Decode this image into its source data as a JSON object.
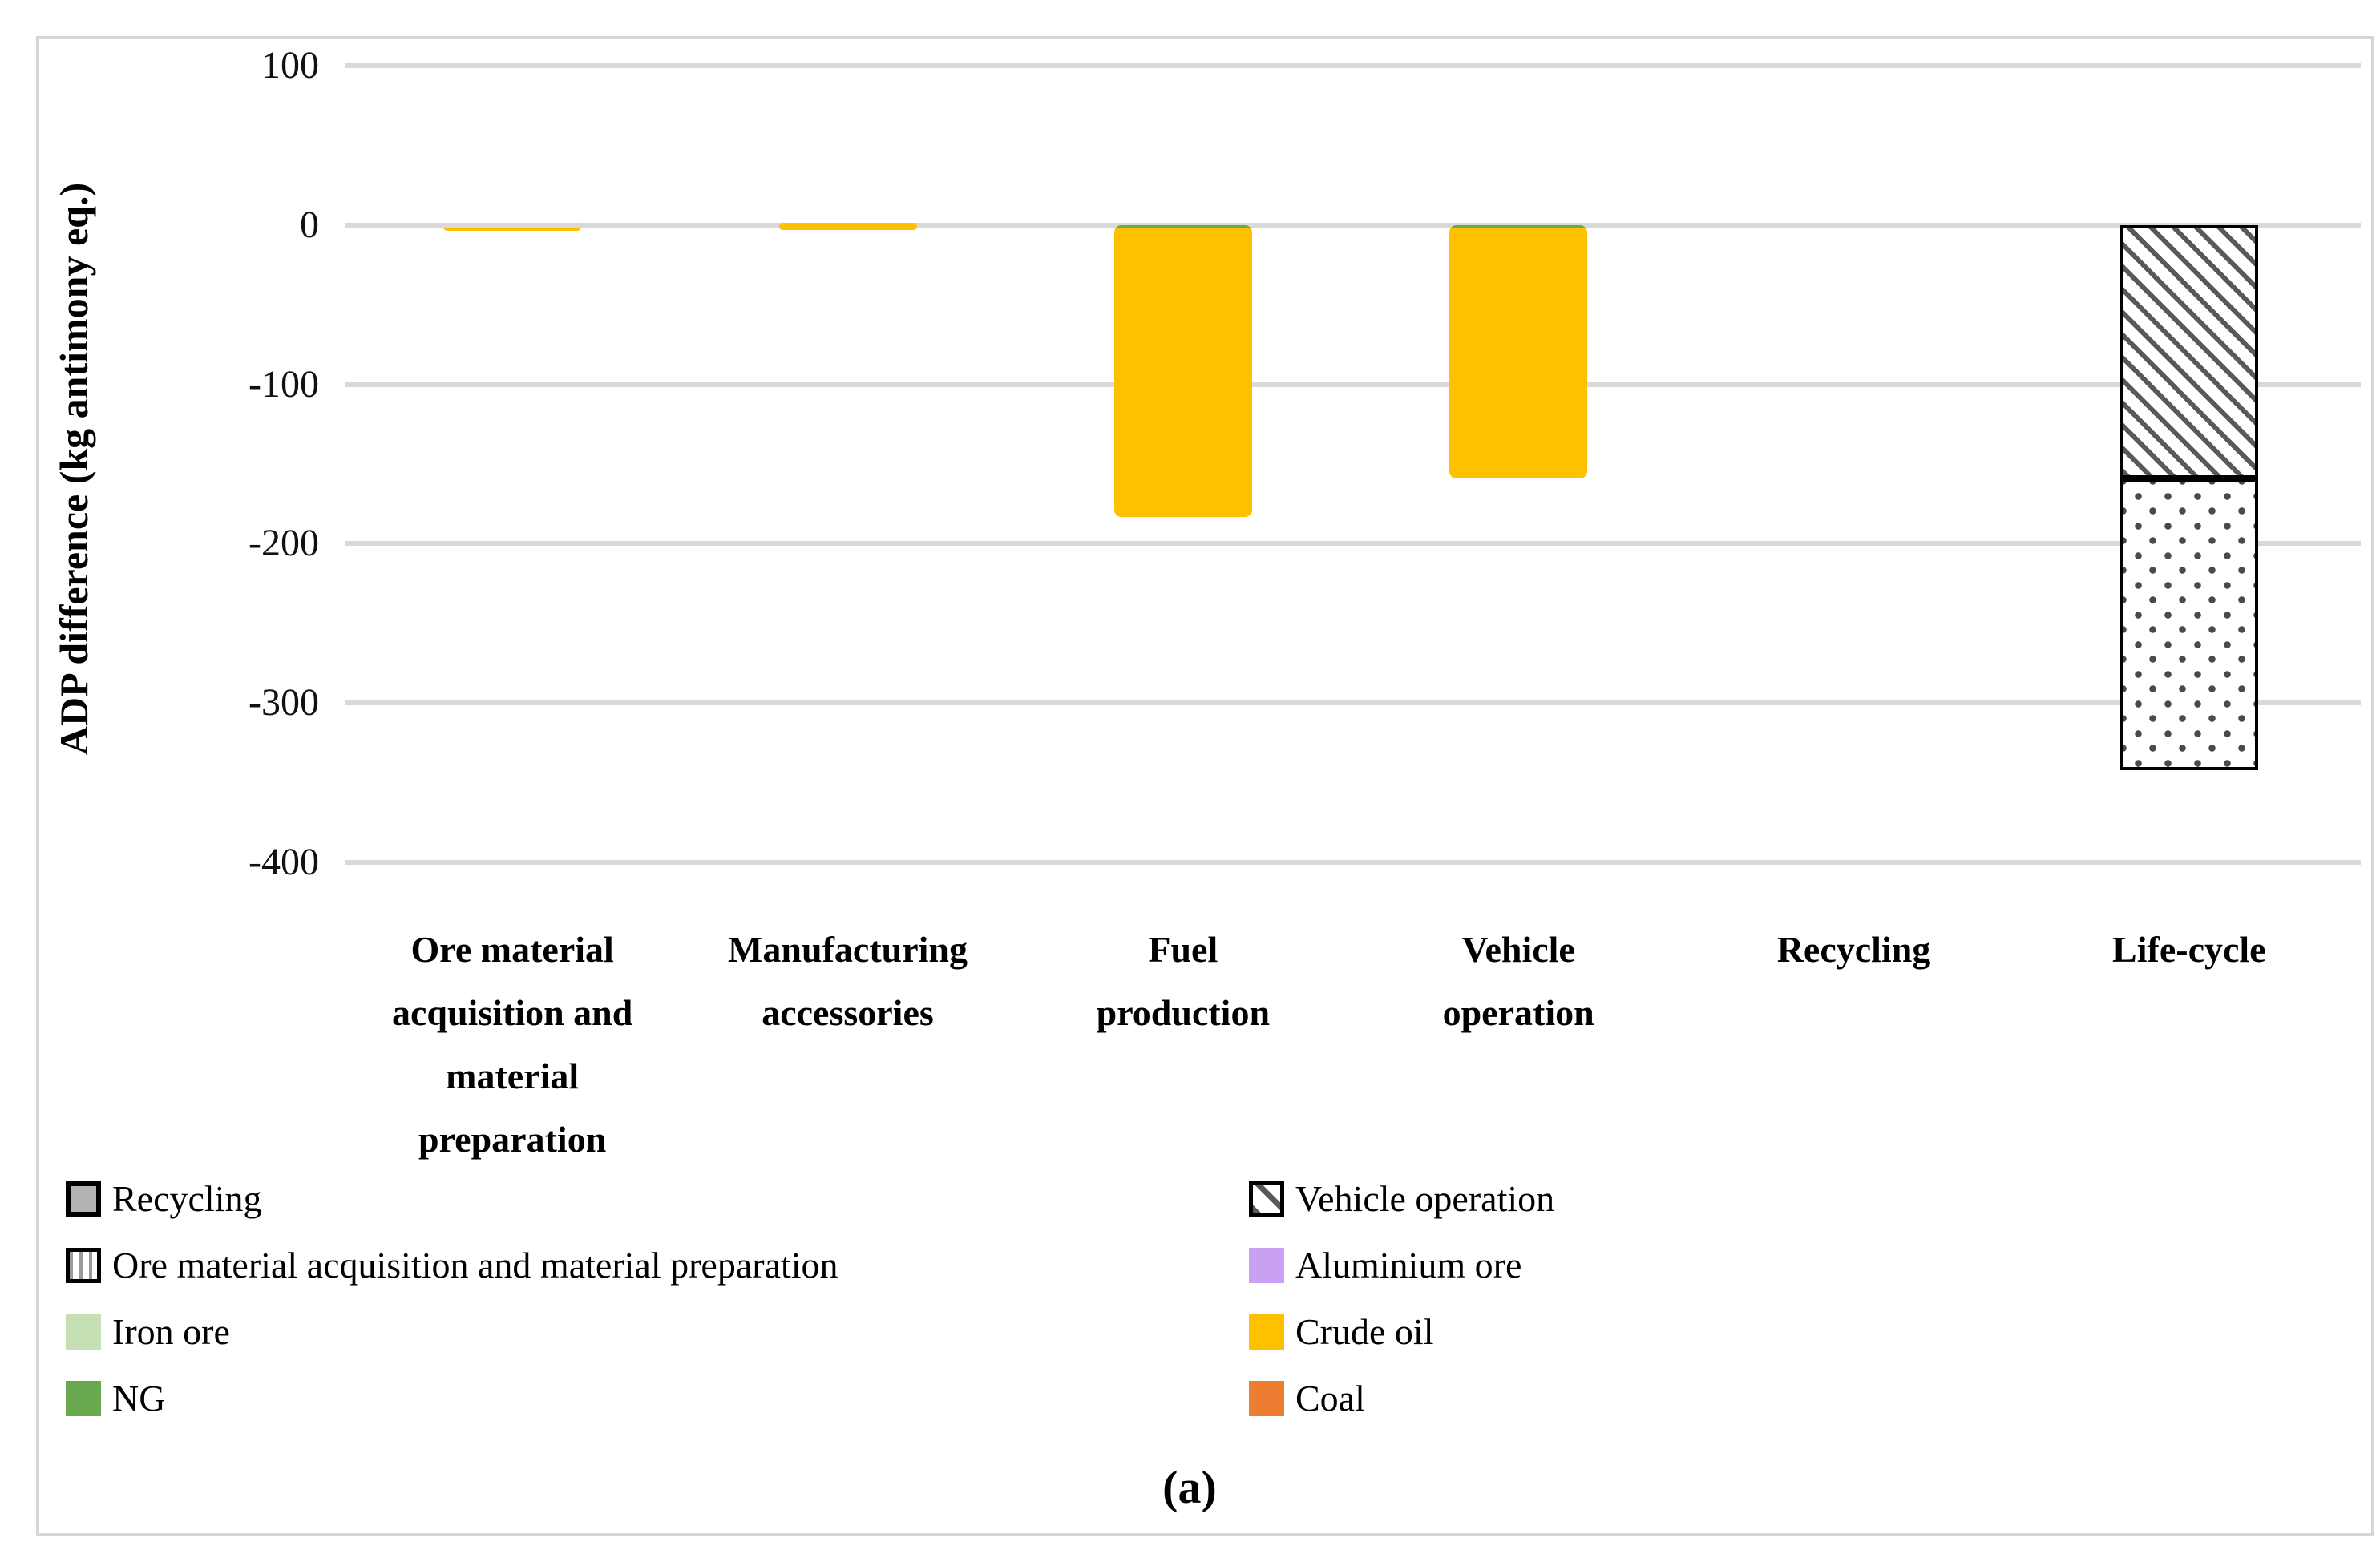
{
  "figure": {
    "caption": "(a)",
    "ylabel": "ADP difference (kg antimony eq.)"
  },
  "axis": {
    "yticks": [
      {
        "value": 100,
        "label": "100"
      },
      {
        "value": 0,
        "label": "0"
      },
      {
        "value": -100,
        "label": "-100"
      },
      {
        "value": -200,
        "label": "-200"
      },
      {
        "value": -300,
        "label": "-300"
      },
      {
        "value": -400,
        "label": "-400"
      }
    ]
  },
  "categories": [
    {
      "name": "Ore material acquisition and material preparation",
      "text": "Ore material\nacquisition and\nmaterial\npreparation"
    },
    {
      "name": "Manufacturing accessories",
      "text": "Manufacturing\naccessories"
    },
    {
      "name": "Fuel production",
      "text": "Fuel\nproduction"
    },
    {
      "name": "Vehicle operation",
      "text": "Vehicle\noperation"
    },
    {
      "name": "Recycling",
      "text": "Recycling"
    },
    {
      "name": "Life-cycle",
      "text": "Life-cycle"
    }
  ],
  "bars": [
    {
      "category_index": 0,
      "rounded": true,
      "zero_overlay": true,
      "segments": [
        {
          "style": "crude-oil",
          "from": 1.5,
          "to": -3.5
        }
      ]
    },
    {
      "category_index": 1,
      "rounded": true,
      "segments": [
        {
          "style": "crude-oil",
          "from": 1.5,
          "to": -3
        }
      ]
    },
    {
      "category_index": 2,
      "rounded": true,
      "segments": [
        {
          "style": "ng",
          "from": 0,
          "to": -2
        },
        {
          "style": "crude-oil",
          "from": -2,
          "to": -183
        }
      ]
    },
    {
      "category_index": 3,
      "rounded": true,
      "segments": [
        {
          "style": "ng",
          "from": 0,
          "to": -2
        },
        {
          "style": "crude-oil",
          "from": -2,
          "to": -159
        }
      ]
    },
    {
      "category_index": 5,
      "rounded": false,
      "segments": [
        {
          "style": "vehicle-operation-hatch",
          "from": 0,
          "to": -159
        },
        {
          "style": "fuel-production-dots",
          "from": -159,
          "to": -342
        }
      ]
    }
  ],
  "legend": {
    "left_column": [
      {
        "label": "Recycling",
        "swatch": "recycling"
      },
      {
        "label": "Ore material acquisition and material preparation",
        "swatch": "ore-material"
      },
      {
        "label": "Iron ore",
        "swatch": "iron-ore"
      },
      {
        "label": "NG",
        "swatch": "ng"
      }
    ],
    "right_column": [
      {
        "label": "Vehicle operation",
        "swatch": "vehicle-operation"
      },
      {
        "label": "Aluminium ore",
        "swatch": "aluminium-ore"
      },
      {
        "label": "Crude oil",
        "swatch": "crude-oil"
      },
      {
        "label": "Coal",
        "swatch": "coal"
      }
    ]
  },
  "colors": {
    "crude_oil": "#FFC000",
    "ng": "#6AA84F",
    "iron_ore": "#C6DFB4",
    "aluminium_ore": "#C9A0F2",
    "coal": "#ED7D31",
    "recycling_gray": "#B3B3B3",
    "pattern_dark": "#595959",
    "gridline": "#D9D9D9"
  },
  "chart_data": {
    "type": "bar",
    "stacked": true,
    "title": "",
    "xlabel": "",
    "ylabel": "ADP difference (kg antimony eq.)",
    "ylim": [
      -400,
      100
    ],
    "yticks": [
      100,
      0,
      -100,
      -200,
      -300,
      -400
    ],
    "grid": true,
    "legend_position": "bottom",
    "categories": [
      "Ore material acquisition and material preparation",
      "Manufacturing accessories",
      "Fuel production",
      "Vehicle operation",
      "Recycling",
      "Life-cycle"
    ],
    "series": [
      {
        "name": "NG",
        "values": [
          0,
          0,
          -2,
          -2,
          0,
          0
        ]
      },
      {
        "name": "Crude oil",
        "values": [
          -4,
          -4,
          -181,
          -157,
          0,
          0
        ]
      },
      {
        "name": "Vehicle operation",
        "values": [
          0,
          0,
          0,
          0,
          0,
          -159
        ]
      },
      {
        "name": "Fuel production",
        "values": [
          0,
          0,
          0,
          0,
          0,
          -183
        ]
      }
    ],
    "totals": [
      -4,
      -4,
      -183,
      -159,
      0,
      -342
    ]
  }
}
